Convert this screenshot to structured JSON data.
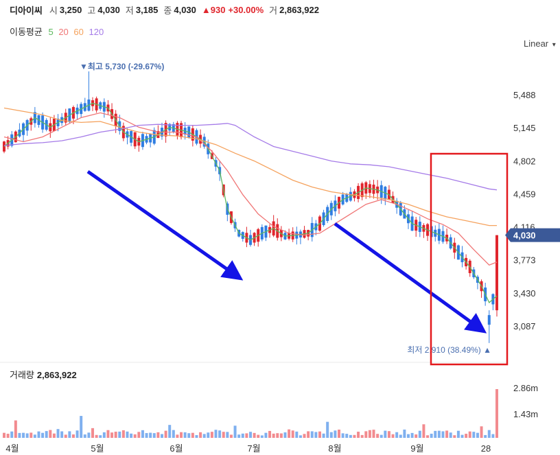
{
  "header": {
    "name": "디아이씨",
    "open_label": "시",
    "open": "3,250",
    "high_label": "고",
    "high": "4,030",
    "low_label": "저",
    "low": "3,185",
    "close_label": "종",
    "close": "4,030",
    "change": "▲930",
    "change_pct": "+30.00%",
    "volume_label": "거",
    "volume": "2,863,922"
  },
  "ma_legend": {
    "title": "이동평균",
    "items": [
      {
        "label": "5",
        "color": "#5cb85c"
      },
      {
        "label": "20",
        "color": "#f07676"
      },
      {
        "label": "60",
        "color": "#f5a25d"
      },
      {
        "label": "120",
        "color": "#a57be8"
      }
    ]
  },
  "scale_label": "Linear",
  "volume_panel": {
    "label": "거래량",
    "value": "2,863,922"
  },
  "colors": {
    "up": "#e0262d",
    "down": "#2f7de1",
    "annotation_arrow": "#1414e6",
    "highlight_box": "#e3191d",
    "current_price_tag": "#3b5998"
  },
  "chart_data": {
    "type": "candlestick",
    "y_ticks": [
      5488,
      5145,
      4802,
      4459,
      4116,
      3773,
      3430,
      3087
    ],
    "y_tick_labels": [
      "5,488",
      "5,145",
      "4,802",
      "4,459",
      "4,116",
      "3,773",
      "3,430",
      "3,087"
    ],
    "ylim": [
      2750,
      6100
    ],
    "x_tick_labels": [
      "4월",
      "5월",
      "6월",
      "7월",
      "8월",
      "9월",
      "28"
    ],
    "current_price": "4,030",
    "high_marker": {
      "label": "▼최고 5,730 (-29.67%)",
      "value": 5730
    },
    "low_marker": {
      "label": "최저 2,910 (38.49%) ▲",
      "value": 2910
    },
    "volume_ticks": [
      "2.86m",
      "1.43m"
    ],
    "volume_max": 2860000,
    "ma_lines": [
      {
        "name": "5",
        "color": "#5cb85c",
        "points": [
          [
            0,
            4950
          ],
          [
            3,
            5050
          ],
          [
            8,
            5250
          ],
          [
            12,
            5150
          ],
          [
            18,
            5300
          ],
          [
            23,
            5400
          ],
          [
            27,
            5350
          ],
          [
            31,
            5100
          ],
          [
            35,
            5000
          ],
          [
            39,
            5050
          ],
          [
            43,
            5150
          ],
          [
            48,
            5100
          ],
          [
            52,
            5000
          ],
          [
            56,
            4700
          ],
          [
            58,
            4300
          ],
          [
            61,
            4050
          ],
          [
            64,
            3980
          ],
          [
            67,
            4050
          ],
          [
            70,
            4100
          ],
          [
            73,
            4020
          ],
          [
            76,
            4030
          ],
          [
            79,
            4050
          ],
          [
            82,
            4150
          ],
          [
            85,
            4300
          ],
          [
            88,
            4400
          ],
          [
            91,
            4450
          ],
          [
            94,
            4520
          ],
          [
            97,
            4500
          ],
          [
            100,
            4450
          ],
          [
            103,
            4300
          ],
          [
            106,
            4150
          ],
          [
            109,
            4100
          ],
          [
            112,
            4050
          ],
          [
            115,
            4000
          ],
          [
            118,
            3850
          ],
          [
            121,
            3700
          ],
          [
            124,
            3500
          ],
          [
            126,
            3330
          ],
          [
            128,
            3400
          ]
        ]
      },
      {
        "name": "20",
        "color": "#f07676",
        "points": [
          [
            0,
            5050
          ],
          [
            5,
            5000
          ],
          [
            10,
            5050
          ],
          [
            15,
            5150
          ],
          [
            20,
            5250
          ],
          [
            25,
            5300
          ],
          [
            30,
            5250
          ],
          [
            35,
            5150
          ],
          [
            40,
            5100
          ],
          [
            45,
            5100
          ],
          [
            50,
            5050
          ],
          [
            54,
            4900
          ],
          [
            58,
            4700
          ],
          [
            62,
            4450
          ],
          [
            66,
            4250
          ],
          [
            70,
            4120
          ],
          [
            74,
            4050
          ],
          [
            78,
            4030
          ],
          [
            82,
            4050
          ],
          [
            86,
            4150
          ],
          [
            90,
            4250
          ],
          [
            94,
            4350
          ],
          [
            98,
            4400
          ],
          [
            102,
            4350
          ],
          [
            106,
            4280
          ],
          [
            110,
            4200
          ],
          [
            114,
            4140
          ],
          [
            118,
            4050
          ],
          [
            122,
            3880
          ],
          [
            126,
            3720
          ],
          [
            128,
            3750
          ]
        ]
      },
      {
        "name": "60",
        "color": "#f5a25d",
        "points": [
          [
            0,
            5350
          ],
          [
            10,
            5280
          ],
          [
            15,
            5220
          ],
          [
            20,
            5200
          ],
          [
            25,
            5210
          ],
          [
            30,
            5150
          ],
          [
            35,
            5100
          ],
          [
            40,
            5070
          ],
          [
            45,
            5060
          ],
          [
            50,
            5030
          ],
          [
            55,
            4970
          ],
          [
            60,
            4880
          ],
          [
            65,
            4800
          ],
          [
            70,
            4700
          ],
          [
            75,
            4600
          ],
          [
            80,
            4530
          ],
          [
            85,
            4480
          ],
          [
            90,
            4450
          ],
          [
            95,
            4430
          ],
          [
            100,
            4400
          ],
          [
            105,
            4350
          ],
          [
            110,
            4280
          ],
          [
            115,
            4220
          ],
          [
            120,
            4180
          ],
          [
            126,
            4130
          ],
          [
            128,
            4130
          ]
        ]
      },
      {
        "name": "120",
        "color": "#a57be8",
        "points": [
          [
            0,
            4960
          ],
          [
            5,
            4980
          ],
          [
            10,
            4990
          ],
          [
            15,
            5010
          ],
          [
            20,
            5050
          ],
          [
            25,
            5100
          ],
          [
            30,
            5130
          ],
          [
            35,
            5170
          ],
          [
            40,
            5180
          ],
          [
            45,
            5170
          ],
          [
            50,
            5170
          ],
          [
            55,
            5180
          ],
          [
            58,
            5190
          ],
          [
            60,
            5170
          ],
          [
            65,
            5050
          ],
          [
            70,
            4950
          ],
          [
            75,
            4900
          ],
          [
            80,
            4850
          ],
          [
            85,
            4800
          ],
          [
            90,
            4770
          ],
          [
            95,
            4760
          ],
          [
            100,
            4740
          ],
          [
            105,
            4700
          ],
          [
            110,
            4660
          ],
          [
            115,
            4620
          ],
          [
            120,
            4570
          ],
          [
            126,
            4510
          ],
          [
            128,
            4500
          ]
        ]
      }
    ]
  },
  "annotations": {
    "arrows": [
      {
        "from": [
          128,
          250
        ],
        "to": [
          342,
          400
        ]
      },
      {
        "from": [
          488,
          326
        ],
        "to": [
          697,
          477
        ]
      }
    ],
    "box": {
      "x": 628,
      "y": 224,
      "w": 111,
      "h": 307
    }
  }
}
